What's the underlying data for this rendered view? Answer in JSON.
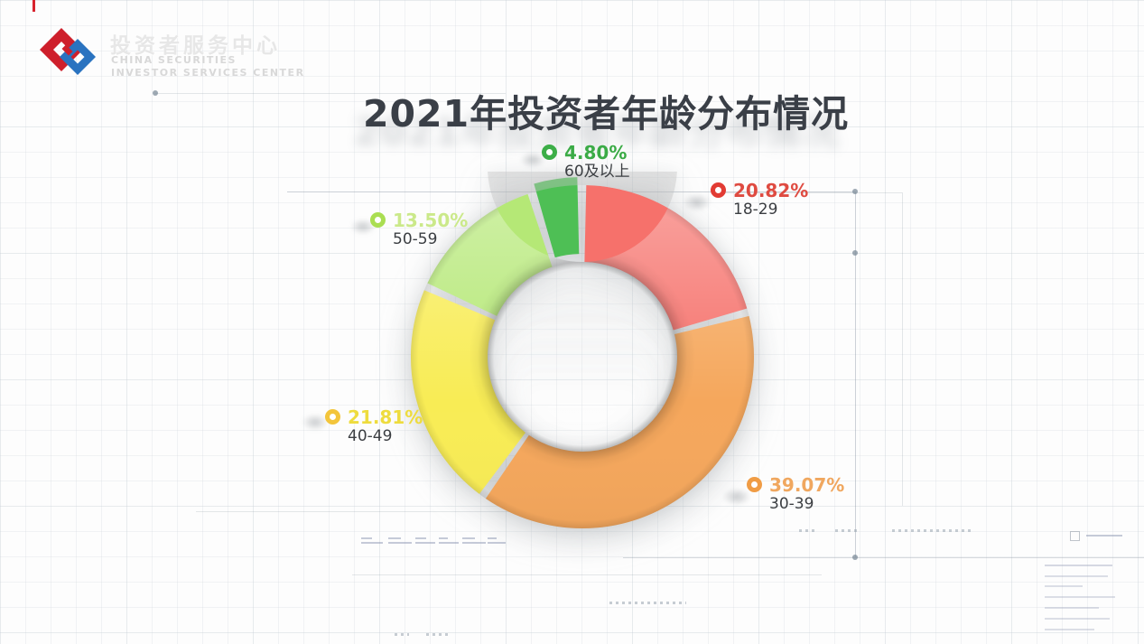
{
  "logo": {
    "cn_name": "投资者服务中心",
    "en_line1": "CHINA SECURITIES",
    "en_line2": "INVESTOR SERVICES CENTER",
    "red": "#ce1f2b",
    "blue": "#2a73c0"
  },
  "title": {
    "text": "2021年投资者年龄分布情况",
    "color": "#3a3f47"
  },
  "chart_data": {
    "type": "pie",
    "subtype": "donut",
    "title": "2021年投资者年龄分布情况",
    "unit": "%",
    "direction": "clockwise",
    "start_angle_deg": 0,
    "inner_radius_ratio": 0.553,
    "segments": [
      {
        "label": "18-29",
        "value": 20.82,
        "pct_label": "20.82%",
        "color": "#f6716b",
        "text_color": "#df4b41",
        "icon_color": "#e23b33",
        "explode": false
      },
      {
        "label": "30-39",
        "value": 39.07,
        "pct_label": "39.07%",
        "color": "#f5a75c",
        "text_color": "#f0a75f",
        "icon_color": "#f09c45",
        "explode": false
      },
      {
        "label": "40-49",
        "value": 21.81,
        "pct_label": "21.81%",
        "color": "#f8ec55",
        "text_color": "#eedc3e",
        "icon_color": "#f3c53b",
        "explode": false
      },
      {
        "label": "50-59",
        "value": 13.5,
        "pct_label": "13.50%",
        "color": "#b5e876",
        "text_color": "#cbe98a",
        "icon_color": "#aade52",
        "explode": false
      },
      {
        "label": "60及以上",
        "value": 4.8,
        "pct_label": "4.80%",
        "color": "#4ebf55",
        "text_color": "#3bab46",
        "icon_color": "#3cae47",
        "explode": true
      }
    ]
  }
}
